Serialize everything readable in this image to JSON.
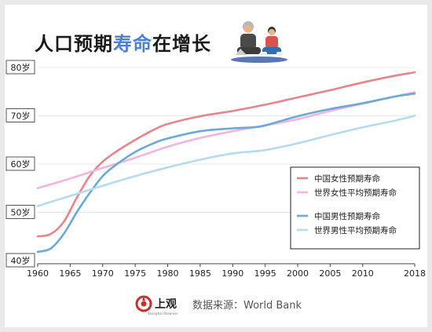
{
  "title_main": "人口预期",
  "title_highlight": "寿命",
  "title_end": "在增长",
  "footer": {
    "logo_text": "上观",
    "logo_sub": "Shanghai Observer",
    "source": "数据来源：World Bank"
  },
  "chart_data": {
    "type": "line",
    "x_ticks": [
      "1960",
      "1965",
      "1970",
      "1975",
      "1980",
      "1985",
      "1990",
      "1995",
      "2000",
      "2005",
      "2010",
      "2018"
    ],
    "y_ticks": [
      "40岁",
      "50岁",
      "60岁",
      "70岁",
      "80岁"
    ],
    "xlim": [
      1960,
      2018
    ],
    "ylim": [
      40,
      80
    ],
    "legend_position": "right",
    "series": [
      {
        "name": "中国女性预期寿命",
        "color": "#e8848c",
        "points": [
          [
            1960,
            45.0
          ],
          [
            1962,
            45.5
          ],
          [
            1964,
            48
          ],
          [
            1966,
            53
          ],
          [
            1968,
            57.5
          ],
          [
            1970,
            60.5
          ],
          [
            1972,
            62.5
          ],
          [
            1975,
            65
          ],
          [
            1978,
            67.2
          ],
          [
            1980,
            68.3
          ],
          [
            1985,
            69.9
          ],
          [
            1990,
            71.0
          ],
          [
            1995,
            72.3
          ],
          [
            2000,
            73.8
          ],
          [
            2005,
            75.3
          ],
          [
            2010,
            76.9
          ],
          [
            2015,
            78.3
          ],
          [
            2018,
            79.0
          ]
        ]
      },
      {
        "name": "世界女性平均预期寿命",
        "color": "#f1b6e0",
        "points": [
          [
            1960,
            55.0
          ],
          [
            1965,
            57.0
          ],
          [
            1970,
            59.2
          ],
          [
            1975,
            61.3
          ],
          [
            1980,
            63.6
          ],
          [
            1985,
            65.4
          ],
          [
            1990,
            66.8
          ],
          [
            1995,
            68.0
          ],
          [
            2000,
            69.3
          ],
          [
            2005,
            71.0
          ],
          [
            2010,
            72.5
          ],
          [
            2015,
            74.0
          ],
          [
            2018,
            74.9
          ]
        ]
      },
      {
        "name": "中国男性预期寿命",
        "color": "#6aaad4",
        "points": [
          [
            1960,
            41.8
          ],
          [
            1962,
            42.5
          ],
          [
            1964,
            45.5
          ],
          [
            1966,
            50
          ],
          [
            1968,
            54
          ],
          [
            1970,
            57.5
          ],
          [
            1972,
            59.8
          ],
          [
            1975,
            62.5
          ],
          [
            1978,
            64.4
          ],
          [
            1980,
            65.3
          ],
          [
            1985,
            66.8
          ],
          [
            1990,
            67.4
          ],
          [
            1993,
            67.6
          ],
          [
            1995,
            68.0
          ],
          [
            2000,
            69.9
          ],
          [
            2005,
            71.4
          ],
          [
            2010,
            72.6
          ],
          [
            2015,
            74.0
          ],
          [
            2018,
            74.6
          ]
        ]
      },
      {
        "name": "世界男性平均预期寿命",
        "color": "#b5dbef",
        "points": [
          [
            1960,
            51.3
          ],
          [
            1965,
            53.4
          ],
          [
            1970,
            55.5
          ],
          [
            1975,
            57.5
          ],
          [
            1980,
            59.3
          ],
          [
            1985,
            60.9
          ],
          [
            1990,
            62.2
          ],
          [
            1995,
            62.9
          ],
          [
            2000,
            64.3
          ],
          [
            2005,
            66.0
          ],
          [
            2010,
            67.6
          ],
          [
            2015,
            69.0
          ],
          [
            2018,
            70.0
          ]
        ]
      }
    ]
  }
}
